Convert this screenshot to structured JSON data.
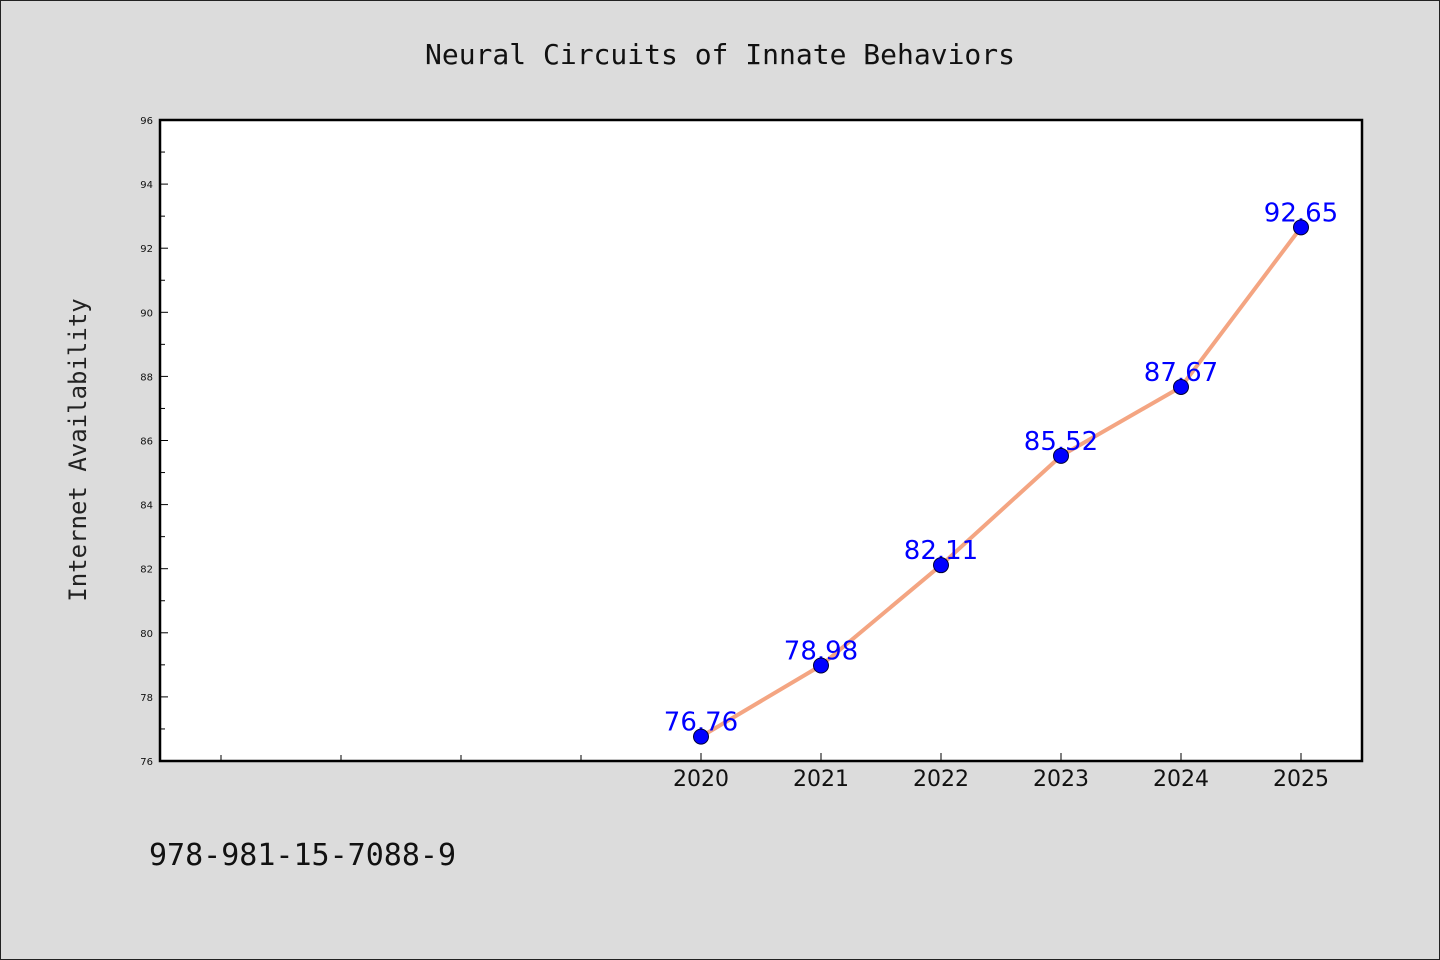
{
  "chart_data": {
    "type": "line",
    "title": "Neural Circuits of Innate Behaviors",
    "xlabel": "",
    "ylabel": "Internet Availability",
    "categories": [
      "2020",
      "2021",
      "2022",
      "2023",
      "2024",
      "2025"
    ],
    "series": [
      {
        "values": [
          76.76,
          78.98,
          82.11,
          85.52,
          87.67,
          92.65
        ],
        "data_labels": [
          "76.76",
          "78.98",
          "82.11",
          "85.52",
          "87.67",
          "92.65"
        ],
        "line_color": "#f4a582",
        "marker_color": "#0000ff",
        "label_color": "#0000ff"
      }
    ],
    "ylim": [
      76,
      96
    ],
    "yticks": [
      "76",
      "78",
      "80",
      "82",
      "84",
      "86",
      "88",
      "90",
      "92",
      "94",
      "96"
    ],
    "grid": false,
    "legend": "none"
  },
  "footer": {
    "isbn": "978-981-15-7088-9"
  },
  "colors": {
    "figure_background": "#dcdcdc",
    "plot_background": "#ffffff",
    "axis": "#000000"
  }
}
